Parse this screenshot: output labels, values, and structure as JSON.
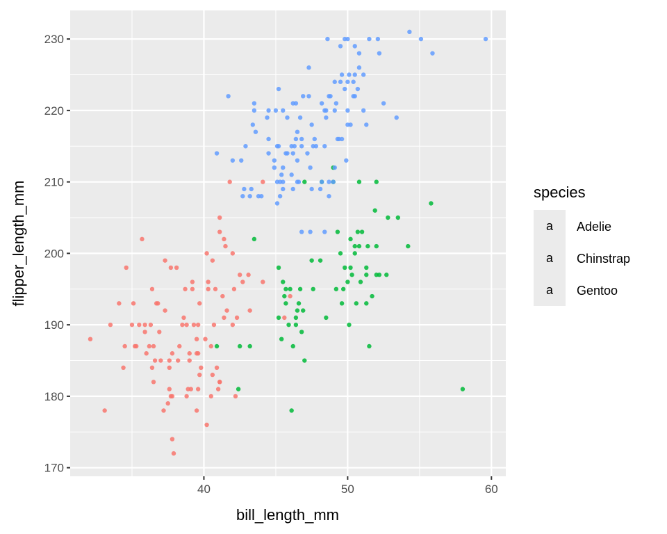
{
  "chart_data": {
    "type": "scatter",
    "title": "",
    "xlabel": "bill_length_mm",
    "ylabel": "flipper_length_mm",
    "xlim": [
      30.7,
      61.0
    ],
    "ylim": [
      168.8,
      234.0
    ],
    "xticks": [
      40,
      50,
      60
    ],
    "yticks": [
      170,
      180,
      190,
      200,
      210,
      220,
      230
    ],
    "xtick_labels": [
      "40",
      "50",
      "60"
    ],
    "ytick_labels": [
      "170",
      "180",
      "190",
      "200",
      "210",
      "220",
      "230"
    ],
    "grid": true,
    "marker": "text label (species name)",
    "legend": {
      "title": "species",
      "placement": "right",
      "key_glyph": "a",
      "entries": [
        {
          "label": "Adelie",
          "color": "#F8766D"
        },
        {
          "label": "Chinstrap",
          "color": "#00BA38"
        },
        {
          "label": "Gentoo",
          "color": "#619CFF"
        }
      ]
    },
    "series": [
      {
        "name": "Adelie",
        "color": "#F8766D",
        "points": [
          [
            39.1,
            181
          ],
          [
            39.5,
            186
          ],
          [
            40.3,
            195
          ],
          [
            36.7,
            193
          ],
          [
            39.3,
            190
          ],
          [
            38.9,
            181
          ],
          [
            39.2,
            195
          ],
          [
            34.1,
            193
          ],
          [
            42.0,
            190
          ],
          [
            37.8,
            186
          ],
          [
            37.8,
            180
          ],
          [
            41.1,
            182
          ],
          [
            38.6,
            191
          ],
          [
            34.6,
            198
          ],
          [
            36.6,
            185
          ],
          [
            38.7,
            195
          ],
          [
            42.5,
            197
          ],
          [
            34.4,
            184
          ],
          [
            46.0,
            194
          ],
          [
            37.8,
            174
          ],
          [
            37.7,
            180
          ],
          [
            35.9,
            189
          ],
          [
            38.2,
            185
          ],
          [
            38.8,
            180
          ],
          [
            35.3,
            187
          ],
          [
            40.6,
            183
          ],
          [
            40.5,
            187
          ],
          [
            37.9,
            172
          ],
          [
            40.5,
            180
          ],
          [
            39.5,
            178
          ],
          [
            37.2,
            178
          ],
          [
            39.5,
            188
          ],
          [
            40.9,
            184
          ],
          [
            36.4,
            195
          ],
          [
            39.2,
            196
          ],
          [
            38.8,
            190
          ],
          [
            42.2,
            180
          ],
          [
            37.6,
            181
          ],
          [
            39.8,
            184
          ],
          [
            36.5,
            182
          ],
          [
            40.8,
            195
          ],
          [
            36.0,
            186
          ],
          [
            44.1,
            196
          ],
          [
            37.0,
            185
          ],
          [
            39.6,
            190
          ],
          [
            41.1,
            182
          ],
          [
            37.5,
            179
          ],
          [
            42.3,
            191
          ],
          [
            39.6,
            186
          ],
          [
            40.1,
            188
          ],
          [
            35.0,
            190
          ],
          [
            42.0,
            200
          ],
          [
            34.5,
            187
          ],
          [
            41.4,
            191
          ],
          [
            39.0,
            186
          ],
          [
            40.6,
            199
          ],
          [
            36.5,
            187
          ],
          [
            37.6,
            184
          ],
          [
            35.7,
            202
          ],
          [
            41.3,
            194
          ],
          [
            37.6,
            185
          ],
          [
            41.1,
            205
          ],
          [
            36.4,
            184
          ],
          [
            41.6,
            192
          ],
          [
            35.5,
            190
          ],
          [
            41.1,
            203
          ],
          [
            35.9,
            190
          ],
          [
            41.8,
            210
          ],
          [
            33.5,
            190
          ],
          [
            39.7,
            193
          ],
          [
            32.1,
            188
          ],
          [
            40.2,
            176
          ],
          [
            37.3,
            192
          ],
          [
            39.0,
            185
          ],
          [
            36.2,
            187
          ],
          [
            40.7,
            190
          ],
          [
            38.1,
            198
          ],
          [
            40.2,
            200
          ],
          [
            35.2,
            187
          ],
          [
            41.5,
            201
          ],
          [
            38.5,
            190
          ],
          [
            43.1,
            197
          ],
          [
            36.3,
            190
          ],
          [
            37.7,
            198
          ],
          [
            41.4,
            202
          ],
          [
            33.1,
            178
          ],
          [
            36.8,
            193
          ],
          [
            44.1,
            210
          ],
          [
            42.7,
            196
          ],
          [
            39.7,
            183
          ],
          [
            35.1,
            193
          ],
          [
            37.3,
            199
          ],
          [
            36.9,
            189
          ],
          [
            38.3,
            187
          ],
          [
            41.0,
            181
          ],
          [
            39.6,
            181
          ],
          [
            45.6,
            191
          ],
          [
            42.1,
            195
          ],
          [
            40.3,
            196
          ],
          [
            43.2,
            192
          ]
        ]
      },
      {
        "name": "Chinstrap",
        "color": "#00BA38",
        "points": [
          [
            46.5,
            192
          ],
          [
            50.0,
            196
          ],
          [
            51.3,
            193
          ],
          [
            45.4,
            188
          ],
          [
            52.7,
            197
          ],
          [
            45.2,
            198
          ],
          [
            46.1,
            178
          ],
          [
            51.3,
            197
          ],
          [
            46.0,
            195
          ],
          [
            51.3,
            198
          ],
          [
            46.6,
            193
          ],
          [
            51.7,
            194
          ],
          [
            47.0,
            185
          ],
          [
            52.0,
            201
          ],
          [
            45.9,
            190
          ],
          [
            50.5,
            201
          ],
          [
            50.3,
            197
          ],
          [
            58.0,
            181
          ],
          [
            46.4,
            190
          ],
          [
            49.2,
            195
          ],
          [
            42.4,
            181
          ],
          [
            48.5,
            191
          ],
          [
            43.2,
            187
          ],
          [
            50.6,
            193
          ],
          [
            46.7,
            195
          ],
          [
            52.0,
            197
          ],
          [
            50.5,
            200
          ],
          [
            49.5,
            200
          ],
          [
            46.4,
            191
          ],
          [
            52.8,
            205
          ],
          [
            40.9,
            187
          ],
          [
            54.2,
            201
          ],
          [
            42.5,
            187
          ],
          [
            51.0,
            203
          ],
          [
            49.7,
            195
          ],
          [
            47.5,
            199
          ],
          [
            47.6,
            195
          ],
          [
            52.0,
            210
          ],
          [
            46.9,
            192
          ],
          [
            53.5,
            205
          ],
          [
            49.0,
            210
          ],
          [
            46.2,
            187
          ],
          [
            50.9,
            196
          ],
          [
            45.5,
            196
          ],
          [
            50.8,
            201
          ],
          [
            50.1,
            190
          ],
          [
            49.0,
            212
          ],
          [
            51.5,
            187
          ],
          [
            49.8,
            198
          ],
          [
            48.1,
            199
          ],
          [
            51.4,
            201
          ],
          [
            45.7,
            193
          ],
          [
            50.7,
            203
          ],
          [
            52.2,
            197
          ],
          [
            45.2,
            191
          ],
          [
            49.3,
            203
          ],
          [
            50.2,
            202
          ],
          [
            45.6,
            194
          ],
          [
            51.9,
            206
          ],
          [
            46.8,
            189
          ],
          [
            45.7,
            195
          ],
          [
            55.8,
            207
          ],
          [
            43.5,
            202
          ],
          [
            49.6,
            193
          ],
          [
            50.8,
            210
          ],
          [
            50.2,
            198
          ],
          [
            47.0,
            210
          ],
          [
            48.2,
            210
          ]
        ]
      },
      {
        "name": "Gentoo",
        "color": "#619CFF",
        "points": [
          [
            46.1,
            211
          ],
          [
            50.0,
            230
          ],
          [
            48.7,
            210
          ],
          [
            50.0,
            218
          ],
          [
            47.6,
            215
          ],
          [
            46.5,
            210
          ],
          [
            45.4,
            211
          ],
          [
            46.7,
            219
          ],
          [
            43.3,
            209
          ],
          [
            46.8,
            215
          ],
          [
            40.9,
            214
          ],
          [
            49.0,
            210
          ],
          [
            45.5,
            209
          ],
          [
            48.4,
            215
          ],
          [
            45.8,
            214
          ],
          [
            49.3,
            216
          ],
          [
            42.0,
            213
          ],
          [
            49.2,
            221
          ],
          [
            46.2,
            209
          ],
          [
            48.7,
            222
          ],
          [
            50.2,
            218
          ],
          [
            45.1,
            215
          ],
          [
            46.5,
            213
          ],
          [
            46.3,
            215
          ],
          [
            42.9,
            215
          ],
          [
            46.1,
            215
          ],
          [
            44.5,
            216
          ],
          [
            47.8,
            215
          ],
          [
            48.2,
            210
          ],
          [
            50.0,
            220
          ],
          [
            47.3,
            222
          ],
          [
            42.8,
            209
          ],
          [
            45.1,
            207
          ],
          [
            59.6,
            230
          ],
          [
            49.1,
            220
          ],
          [
            48.4,
            220
          ],
          [
            42.6,
            213
          ],
          [
            44.4,
            219
          ],
          [
            44.0,
            208
          ],
          [
            48.7,
            208
          ],
          [
            42.7,
            208
          ],
          [
            49.6,
            225
          ],
          [
            45.3,
            210
          ],
          [
            49.6,
            216
          ],
          [
            50.5,
            222
          ],
          [
            43.6,
            217
          ],
          [
            45.5,
            210
          ],
          [
            50.5,
            225
          ],
          [
            44.9,
            213
          ],
          [
            45.2,
            215
          ],
          [
            46.6,
            210
          ],
          [
            48.5,
            220
          ],
          [
            45.1,
            210
          ],
          [
            50.1,
            225
          ],
          [
            46.5,
            217
          ],
          [
            45.0,
            220
          ],
          [
            43.8,
            208
          ],
          [
            45.5,
            220
          ],
          [
            43.2,
            208
          ],
          [
            50.4,
            224
          ],
          [
            45.3,
            208
          ],
          [
            46.2,
            221
          ],
          [
            45.7,
            214
          ],
          [
            54.3,
            231
          ],
          [
            45.8,
            219
          ],
          [
            49.8,
            230
          ],
          [
            46.2,
            214
          ],
          [
            49.5,
            229
          ],
          [
            43.5,
            220
          ],
          [
            50.7,
            223
          ],
          [
            47.7,
            216
          ],
          [
            46.4,
            221
          ],
          [
            48.2,
            221
          ],
          [
            46.4,
            216
          ],
          [
            48.6,
            230
          ],
          [
            47.5,
            209
          ],
          [
            51.1,
            220
          ],
          [
            45.2,
            223
          ],
          [
            49.1,
            212
          ],
          [
            52.5,
            221
          ],
          [
            47.4,
            212
          ],
          [
            50.0,
            224
          ],
          [
            44.9,
            212
          ],
          [
            50.8,
            228
          ],
          [
            43.4,
            218
          ],
          [
            51.3,
            218
          ],
          [
            52.1,
            230
          ],
          [
            47.5,
            218
          ],
          [
            52.2,
            228
          ],
          [
            45.5,
            212
          ],
          [
            49.5,
            224
          ],
          [
            44.5,
            214
          ],
          [
            50.8,
            226
          ],
          [
            49.4,
            216
          ],
          [
            46.9,
            222
          ],
          [
            48.4,
            203
          ],
          [
            51.1,
            225
          ],
          [
            48.5,
            219
          ],
          [
            55.9,
            228
          ],
          [
            47.2,
            214
          ],
          [
            49.1,
            224
          ],
          [
            47.3,
            226
          ],
          [
            46.8,
            216
          ],
          [
            41.7,
            222
          ],
          [
            53.4,
            219
          ],
          [
            48.1,
            209
          ],
          [
            50.5,
            229
          ],
          [
            49.8,
            223
          ],
          [
            43.5,
            221
          ],
          [
            51.5,
            230
          ],
          [
            55.1,
            230
          ],
          [
            44.5,
            220
          ],
          [
            48.8,
            222
          ],
          [
            50.4,
            222
          ],
          [
            49.9,
            213
          ],
          [
            47.4,
            203
          ],
          [
            46.8,
            203
          ]
        ]
      }
    ]
  }
}
